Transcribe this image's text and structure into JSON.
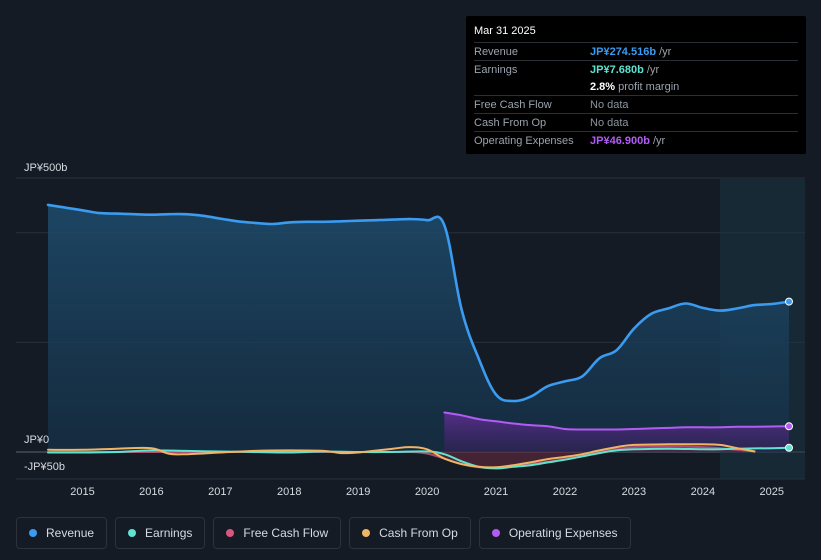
{
  "tooltip": {
    "date": "Mar 31 2025",
    "rows": [
      {
        "label": "Revenue",
        "value": "JP¥274.516b",
        "unit": "/yr",
        "color": "#3a9bf0"
      },
      {
        "label": "Earnings",
        "value": "JP¥7.680b",
        "unit": "/yr",
        "color": "#5ee3d0"
      },
      {
        "label": "",
        "value": "2.8%",
        "unit": "profit margin",
        "color": "#ffffff"
      },
      {
        "label": "Free Cash Flow",
        "value": "No data",
        "unit": "",
        "color": "#8b949e"
      },
      {
        "label": "Cash From Op",
        "value": "No data",
        "unit": "",
        "color": "#8b949e"
      },
      {
        "label": "Operating Expenses",
        "value": "JP¥46.900b",
        "unit": "/yr",
        "color": "#b35cf5"
      }
    ]
  },
  "legend": [
    {
      "label": "Revenue",
      "color": "#3a9bf0"
    },
    {
      "label": "Earnings",
      "color": "#5ee3d0"
    },
    {
      "label": "Free Cash Flow",
      "color": "#d9577f"
    },
    {
      "label": "Cash From Op",
      "color": "#f0b465"
    },
    {
      "label": "Operating Expenses",
      "color": "#b35cf5"
    }
  ],
  "chart_data": {
    "type": "area",
    "title": "",
    "xlabel": "",
    "ylabel": "",
    "y_label_top": "JP¥500b",
    "y_label_zero": "JP¥0",
    "y_label_bottom": "-JP¥50b",
    "ylim": [
      -50,
      500
    ],
    "xlim": [
      2014.5,
      2025.25
    ],
    "x_ticks": [
      2015,
      2016,
      2017,
      2018,
      2019,
      2020,
      2021,
      2022,
      2023,
      2024,
      2025
    ],
    "x_tick_labels": [
      "2015",
      "2016",
      "2017",
      "2018",
      "2019",
      "2020",
      "2021",
      "2022",
      "2023",
      "2024",
      "2025"
    ],
    "highlight_start": 2024.25,
    "series": [
      {
        "name": "Revenue",
        "color": "#3a9bf0",
        "fill": true,
        "points": [
          [
            2014.5,
            451
          ],
          [
            2014.75,
            446
          ],
          [
            2015.0,
            441
          ],
          [
            2015.25,
            436
          ],
          [
            2015.5,
            435
          ],
          [
            2015.75,
            434
          ],
          [
            2016.0,
            433
          ],
          [
            2016.25,
            434
          ],
          [
            2016.5,
            434
          ],
          [
            2016.75,
            431
          ],
          [
            2017.0,
            426
          ],
          [
            2017.25,
            421
          ],
          [
            2017.5,
            418
          ],
          [
            2017.75,
            416
          ],
          [
            2018.0,
            419
          ],
          [
            2018.25,
            420
          ],
          [
            2018.5,
            420
          ],
          [
            2018.75,
            421
          ],
          [
            2019.0,
            422
          ],
          [
            2019.25,
            423
          ],
          [
            2019.5,
            424
          ],
          [
            2019.75,
            425
          ],
          [
            2020.0,
            423
          ],
          [
            2020.25,
            414
          ],
          [
            2020.5,
            260
          ],
          [
            2020.75,
            170
          ],
          [
            2021.0,
            105
          ],
          [
            2021.25,
            93
          ],
          [
            2021.5,
            101
          ],
          [
            2021.75,
            120
          ],
          [
            2022.0,
            129
          ],
          [
            2022.25,
            138
          ],
          [
            2022.5,
            171
          ],
          [
            2022.75,
            186
          ],
          [
            2023.0,
            225
          ],
          [
            2023.25,
            252
          ],
          [
            2023.5,
            262
          ],
          [
            2023.75,
            271
          ],
          [
            2024.0,
            263
          ],
          [
            2024.25,
            258
          ],
          [
            2024.5,
            262
          ],
          [
            2024.75,
            268
          ],
          [
            2025.0,
            270
          ],
          [
            2025.25,
            274.5
          ]
        ]
      },
      {
        "name": "Earnings",
        "color": "#5ee3d0",
        "fill": false,
        "points": [
          [
            2014.5,
            -1
          ],
          [
            2015.0,
            -1
          ],
          [
            2015.5,
            0
          ],
          [
            2016.0,
            3
          ],
          [
            2016.5,
            2
          ],
          [
            2017.0,
            1
          ],
          [
            2017.5,
            0
          ],
          [
            2018.0,
            -1
          ],
          [
            2018.5,
            1
          ],
          [
            2019.0,
            0
          ],
          [
            2019.5,
            0
          ],
          [
            2020.0,
            1
          ],
          [
            2020.25,
            -4
          ],
          [
            2020.5,
            -17
          ],
          [
            2020.75,
            -27
          ],
          [
            2021.0,
            -30
          ],
          [
            2021.25,
            -27
          ],
          [
            2021.5,
            -24
          ],
          [
            2021.75,
            -19
          ],
          [
            2022.0,
            -14
          ],
          [
            2022.25,
            -8
          ],
          [
            2022.5,
            -2
          ],
          [
            2022.75,
            3
          ],
          [
            2023.0,
            5
          ],
          [
            2023.5,
            6
          ],
          [
            2024.0,
            5
          ],
          [
            2024.25,
            5
          ],
          [
            2024.5,
            6
          ],
          [
            2025.0,
            7
          ],
          [
            2025.25,
            7.7
          ]
        ]
      },
      {
        "name": "Free Cash Flow",
        "color": "#d9577f",
        "fill": true,
        "points": [
          [
            2014.5,
            0
          ],
          [
            2015.0,
            0
          ],
          [
            2016.0,
            0
          ],
          [
            2017.0,
            0
          ],
          [
            2018.0,
            0
          ],
          [
            2019.0,
            0
          ],
          [
            2019.75,
            0
          ],
          [
            2020.0,
            -3
          ],
          [
            2020.25,
            -12
          ],
          [
            2020.5,
            -22
          ],
          [
            2020.75,
            -28
          ],
          [
            2021.0,
            -29
          ],
          [
            2021.25,
            -26
          ],
          [
            2021.5,
            -22
          ],
          [
            2021.75,
            -18
          ],
          [
            2022.0,
            -13
          ],
          [
            2022.25,
            -7
          ],
          [
            2022.5,
            0
          ],
          [
            2022.75,
            5
          ],
          [
            2023.0,
            9
          ],
          [
            2023.5,
            10
          ],
          [
            2024.0,
            9
          ],
          [
            2024.25,
            7
          ],
          [
            2024.5,
            4
          ],
          [
            2024.75,
            1
          ]
        ]
      },
      {
        "name": "Cash From Op",
        "color": "#f0b465",
        "fill": false,
        "points": [
          [
            2014.5,
            4
          ],
          [
            2015.0,
            4
          ],
          [
            2015.5,
            6
          ],
          [
            2016.0,
            7
          ],
          [
            2016.25,
            -3
          ],
          [
            2016.5,
            -4
          ],
          [
            2017.0,
            -1
          ],
          [
            2017.5,
            2
          ],
          [
            2018.0,
            3
          ],
          [
            2018.5,
            2
          ],
          [
            2018.75,
            -2
          ],
          [
            2019.0,
            -1
          ],
          [
            2019.5,
            6
          ],
          [
            2019.75,
            9
          ],
          [
            2020.0,
            5
          ],
          [
            2020.25,
            -12
          ],
          [
            2020.5,
            -22
          ],
          [
            2020.75,
            -27
          ],
          [
            2021.0,
            -28
          ],
          [
            2021.25,
            -24
          ],
          [
            2021.5,
            -19
          ],
          [
            2021.75,
            -13
          ],
          [
            2022.0,
            -9
          ],
          [
            2022.25,
            -4
          ],
          [
            2022.5,
            3
          ],
          [
            2022.75,
            9
          ],
          [
            2023.0,
            13
          ],
          [
            2023.5,
            14
          ],
          [
            2024.0,
            14
          ],
          [
            2024.25,
            13
          ],
          [
            2024.5,
            7
          ],
          [
            2024.75,
            1
          ]
        ]
      },
      {
        "name": "Operating Expenses",
        "color": "#b35cf5",
        "fill": true,
        "points": [
          [
            2020.25,
            72
          ],
          [
            2020.5,
            67
          ],
          [
            2020.75,
            60
          ],
          [
            2021.0,
            56
          ],
          [
            2021.25,
            52
          ],
          [
            2021.5,
            49
          ],
          [
            2021.75,
            47
          ],
          [
            2022.0,
            42
          ],
          [
            2022.25,
            41
          ],
          [
            2022.5,
            41
          ],
          [
            2022.75,
            41
          ],
          [
            2023.0,
            42
          ],
          [
            2023.25,
            43
          ],
          [
            2023.5,
            44
          ],
          [
            2023.75,
            45
          ],
          [
            2024.0,
            45
          ],
          [
            2024.25,
            45
          ],
          [
            2024.5,
            46
          ],
          [
            2024.75,
            46
          ],
          [
            2025.0,
            46.5
          ],
          [
            2025.25,
            46.9
          ]
        ]
      }
    ]
  }
}
